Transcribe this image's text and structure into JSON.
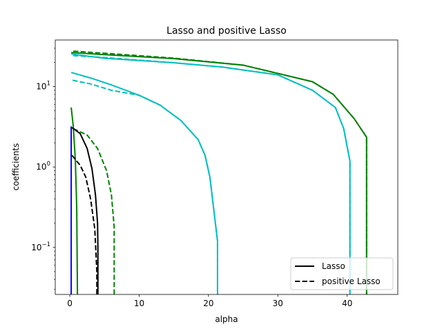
{
  "chart_data": {
    "type": "line",
    "title": "Lasso and positive Lasso",
    "xlabel": "alpha",
    "ylabel": "coefficients",
    "xlim": [
      -2.1,
      47.3
    ],
    "ylim": [
      0.026,
      38
    ],
    "yscale": "log",
    "x_ticks": [
      0,
      10,
      20,
      30,
      40
    ],
    "x_tick_labels": [
      "0",
      "10",
      "20",
      "30",
      "40"
    ],
    "y_ticks": [
      0.1,
      1,
      10
    ],
    "y_tick_base": "10",
    "y_tick_exponents": [
      "−1",
      "0",
      "1"
    ],
    "grid": false,
    "legend": {
      "placement": "lower-right",
      "entries": [
        {
          "label": "Lasso",
          "style": "solid"
        },
        {
          "label": "positive Lasso",
          "style": "dashed"
        }
      ]
    },
    "colors": {
      "blue": "#0000ff",
      "green": "#008000",
      "black": "#000000",
      "cyan": "#00bfbf"
    },
    "series": [
      {
        "color": "#008000",
        "style": "solid",
        "points": [
          [
            0.2,
            26.5
          ],
          [
            5,
            25
          ],
          [
            15,
            22.3
          ],
          [
            25,
            18.5
          ],
          [
            35,
            11.5
          ],
          [
            38,
            8
          ],
          [
            41,
            4
          ],
          [
            42.8,
            2.35
          ],
          [
            42.8,
            0.026
          ]
        ]
      },
      {
        "color": "#008000",
        "style": "dashed",
        "points": [
          [
            0.5,
            27.6
          ],
          [
            5,
            26
          ],
          [
            15,
            22.6
          ],
          [
            25,
            18.5
          ],
          [
            35,
            11.5
          ],
          [
            38,
            8
          ],
          [
            41,
            4
          ],
          [
            42.8,
            2.35
          ],
          [
            42.8,
            0.026
          ]
        ]
      },
      {
        "color": "#00bfbf",
        "style": "solid",
        "points": [
          [
            0.2,
            25.5
          ],
          [
            5,
            22.5
          ],
          [
            15,
            19.8
          ],
          [
            22,
            17.5
          ],
          [
            30,
            14
          ],
          [
            35,
            9
          ],
          [
            38.3,
            5.5
          ],
          [
            39.5,
            3
          ],
          [
            40.4,
            1.18
          ],
          [
            40.4,
            0.026
          ]
        ]
      },
      {
        "color": "#00bfbf",
        "style": "dashed",
        "points": [
          [
            0.5,
            24.3
          ],
          [
            5,
            23
          ],
          [
            15,
            19.8
          ],
          [
            22,
            17.5
          ],
          [
            30,
            14
          ],
          [
            35,
            9
          ],
          [
            38.3,
            5.5
          ],
          [
            39.5,
            3
          ],
          [
            40.4,
            1.18
          ],
          [
            40.4,
            0.026
          ]
        ]
      },
      {
        "color": "#00bfbf",
        "style": "solid",
        "points": [
          [
            0.2,
            15
          ],
          [
            3,
            12.8
          ],
          [
            6,
            10.5
          ],
          [
            10,
            7.8
          ],
          [
            13,
            5.9
          ],
          [
            16,
            3.8
          ],
          [
            18.5,
            2.2
          ],
          [
            19.5,
            1.4
          ],
          [
            20.2,
            0.75
          ],
          [
            21.3,
            0.12
          ],
          [
            21.3,
            0.026
          ]
        ]
      },
      {
        "color": "#00bfbf",
        "style": "dashed",
        "points": [
          [
            0.4,
            12
          ],
          [
            3,
            10.8
          ],
          [
            6,
            9
          ],
          [
            10,
            7.8
          ],
          [
            13,
            5.9
          ],
          [
            16,
            3.8
          ],
          [
            18.5,
            2.2
          ],
          [
            19.5,
            1.4
          ],
          [
            20.2,
            0.75
          ],
          [
            21.3,
            0.12
          ],
          [
            21.3,
            0.026
          ]
        ]
      },
      {
        "color": "#008000",
        "style": "solid",
        "points": [
          [
            0.2,
            5.5
          ],
          [
            0.5,
            3.2
          ],
          [
            0.8,
            1.2
          ],
          [
            1,
            0.3
          ],
          [
            1.1,
            0.026
          ]
        ]
      },
      {
        "color": "#008000",
        "style": "dashed",
        "points": [
          [
            0.5,
            3
          ],
          [
            2.5,
            2.5
          ],
          [
            4,
            1.7
          ],
          [
            5.3,
            0.9
          ],
          [
            6,
            0.45
          ],
          [
            6.4,
            0.18
          ],
          [
            6.4,
            0.026
          ]
        ]
      },
      {
        "color": "#000000",
        "style": "solid",
        "points": [
          [
            0.3,
            3.1
          ],
          [
            1.5,
            2.6
          ],
          [
            2.5,
            1.7
          ],
          [
            3.2,
            0.95
          ],
          [
            3.7,
            0.45
          ],
          [
            4,
            0.2
          ],
          [
            4.05,
            0.1
          ],
          [
            4.05,
            0.026
          ]
        ]
      },
      {
        "color": "#000000",
        "style": "dashed",
        "points": [
          [
            0.3,
            1.4
          ],
          [
            1.5,
            1.05
          ],
          [
            2.3,
            0.75
          ],
          [
            3,
            0.4
          ],
          [
            3.6,
            0.17
          ],
          [
            3.9,
            0.05
          ],
          [
            3.9,
            0.026
          ]
        ]
      },
      {
        "color": "#0000ff",
        "style": "solid",
        "points": [
          [
            0.2,
            3.2
          ],
          [
            0.2,
            0.026
          ]
        ]
      }
    ]
  }
}
